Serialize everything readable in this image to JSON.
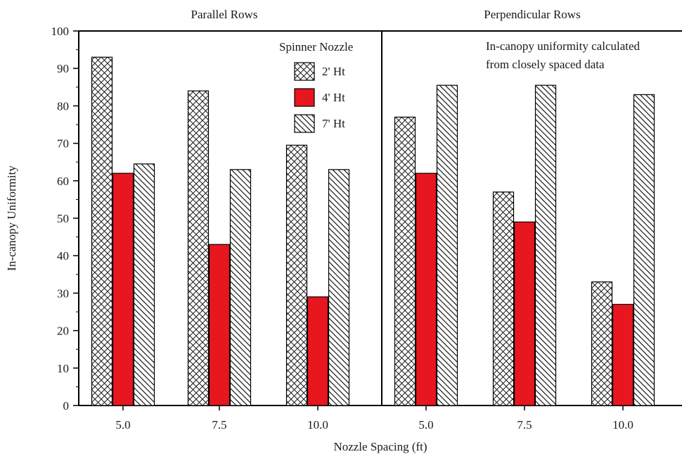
{
  "chart_data": {
    "type": "bar",
    "ylabel": "In-canopy Uniformity",
    "xlabel": "Nozzle Spacing (ft)",
    "ylim": [
      0,
      100
    ],
    "yticks": [
      0,
      10,
      20,
      30,
      40,
      50,
      60,
      70,
      80,
      90,
      100
    ],
    "grid": false,
    "legend_title": "Spinner Nozzle",
    "legend_position": "top-right of left panel",
    "annotation": [
      "In-canopy uniformity calculated",
      "from closely spaced data"
    ],
    "series_meta": [
      {
        "name": "2' Ht",
        "pattern": "crosshatch",
        "color": "#ffffff"
      },
      {
        "name": "4' Ht",
        "pattern": "solid",
        "color": "#e8161e"
      },
      {
        "name": "7' Ht",
        "pattern": "diagonal",
        "color": "#ffffff"
      }
    ],
    "panels": [
      {
        "title": "Parallel Rows",
        "categories": [
          "5.0",
          "7.5",
          "10.0"
        ],
        "series": [
          {
            "name": "2' Ht",
            "values": [
              93,
              84,
              69.5
            ]
          },
          {
            "name": "4' Ht",
            "values": [
              62,
              43,
              29
            ]
          },
          {
            "name": "7' Ht",
            "values": [
              64.5,
              63,
              63
            ]
          }
        ]
      },
      {
        "title": "Perpendicular Rows",
        "categories": [
          "5.0",
          "7.5",
          "10.0"
        ],
        "series": [
          {
            "name": "2' Ht",
            "values": [
              77,
              57,
              33
            ]
          },
          {
            "name": "4' Ht",
            "values": [
              62,
              49,
              27
            ]
          },
          {
            "name": "7' Ht",
            "values": [
              85.5,
              85.5,
              83
            ]
          }
        ]
      }
    ]
  }
}
